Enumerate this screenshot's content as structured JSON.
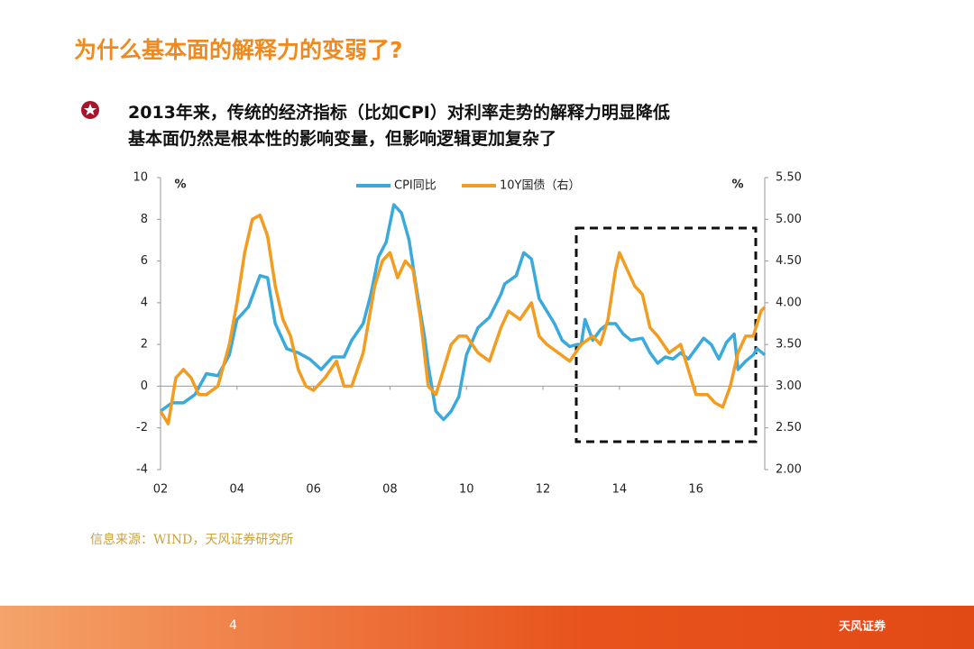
{
  "title": "为什么基本面的解释力的变弱了?",
  "bullets": [
    "2013年来，传统的经济指标（比如CPI）对利率走势的解释力明显降低",
    "基本面仍然是根本性的影响变量，但影响逻辑更加复杂了"
  ],
  "source": "信息来源：WIND，天风证券研究所",
  "page_number": "4",
  "logo": "天风证券",
  "chart_data": {
    "type": "line",
    "y_unit": "%",
    "y2_unit": "%",
    "xlim": [
      2002,
      2017.8
    ],
    "xticks": [
      {
        "value": 2002,
        "label": "02"
      },
      {
        "value": 2004,
        "label": "04"
      },
      {
        "value": 2006,
        "label": "06"
      },
      {
        "value": 2008,
        "label": "08"
      },
      {
        "value": 2010,
        "label": "10"
      },
      {
        "value": 2012,
        "label": "12"
      },
      {
        "value": 2014,
        "label": "14"
      },
      {
        "value": 2016,
        "label": "16"
      }
    ],
    "ylim": [
      -4,
      10
    ],
    "yticks": [
      -4,
      -2,
      0,
      2,
      4,
      6,
      8,
      10
    ],
    "y2lim": [
      2,
      5.5
    ],
    "y2ticks": [
      {
        "value": 2,
        "label": "2.00"
      },
      {
        "value": 2.5,
        "label": "2.50"
      },
      {
        "value": 3,
        "label": "3.00"
      },
      {
        "value": 3.5,
        "label": "3.50"
      },
      {
        "value": 4,
        "label": "4.00"
      },
      {
        "value": 4.5,
        "label": "4.50"
      },
      {
        "value": 5,
        "label": "5.00"
      },
      {
        "value": 5.5,
        "label": "5.50"
      }
    ],
    "series": [
      {
        "name": "CPI同比",
        "color": "#3aa9dc",
        "x": [
          2002.0,
          2002.3,
          2002.6,
          2002.9,
          2003.2,
          2003.5,
          2003.8,
          2004.0,
          2004.3,
          2004.6,
          2004.8,
          2005.0,
          2005.3,
          2005.6,
          2005.9,
          2006.2,
          2006.5,
          2006.8,
          2007.0,
          2007.3,
          2007.5,
          2007.7,
          2007.9,
          2008.1,
          2008.3,
          2008.5,
          2008.7,
          2008.9,
          2009.0,
          2009.2,
          2009.4,
          2009.6,
          2009.8,
          2010.0,
          2010.3,
          2010.6,
          2010.9,
          2011.0,
          2011.3,
          2011.5,
          2011.7,
          2011.9,
          2012.1,
          2012.3,
          2012.5,
          2012.7,
          2012.9,
          2013.0,
          2013.1,
          2013.3,
          2013.5,
          2013.7,
          2013.9,
          2014.1,
          2014.3,
          2014.6,
          2014.8,
          2015.0,
          2015.2,
          2015.4,
          2015.6,
          2015.8,
          2016.0,
          2016.2,
          2016.4,
          2016.6,
          2016.8,
          2016.9,
          2017.0,
          2017.1,
          2017.3,
          2017.5,
          2017.6,
          2017.8
        ],
        "values": [
          -1.2,
          -0.8,
          -0.8,
          -0.4,
          0.6,
          0.5,
          1.5,
          3.2,
          3.8,
          5.3,
          5.2,
          3.0,
          1.8,
          1.6,
          1.3,
          0.8,
          1.4,
          1.4,
          2.2,
          3.0,
          4.4,
          6.2,
          6.9,
          8.7,
          8.3,
          7.0,
          4.6,
          2.4,
          1.0,
          -1.2,
          -1.6,
          -1.2,
          -0.5,
          1.5,
          2.8,
          3.3,
          4.4,
          4.9,
          5.3,
          6.4,
          6.1,
          4.2,
          3.6,
          3.0,
          2.2,
          1.9,
          2.0,
          2.0,
          3.2,
          2.2,
          2.7,
          3.0,
          3.0,
          2.5,
          2.2,
          2.3,
          1.6,
          1.1,
          1.4,
          1.3,
          1.6,
          1.3,
          1.8,
          2.3,
          2.0,
          1.3,
          2.1,
          2.3,
          2.5,
          0.8,
          1.2,
          1.5,
          1.8,
          1.5
        ]
      },
      {
        "name": "10Y国债（右）",
        "color": "#f39c1f",
        "axis": "y2",
        "x": [
          2002.0,
          2002.2,
          2002.4,
          2002.6,
          2002.8,
          2003.0,
          2003.2,
          2003.5,
          2003.8,
          2004.0,
          2004.2,
          2004.4,
          2004.6,
          2004.8,
          2005.0,
          2005.2,
          2005.4,
          2005.6,
          2005.8,
          2006.0,
          2006.3,
          2006.6,
          2006.8,
          2007.0,
          2007.3,
          2007.6,
          2007.8,
          2008.0,
          2008.2,
          2008.4,
          2008.6,
          2008.8,
          2009.0,
          2009.2,
          2009.4,
          2009.6,
          2009.8,
          2010.0,
          2010.3,
          2010.6,
          2010.9,
          2011.1,
          2011.4,
          2011.7,
          2011.9,
          2012.1,
          2012.4,
          2012.7,
          2013.0,
          2013.3,
          2013.5,
          2013.7,
          2013.9,
          2014.0,
          2014.2,
          2014.4,
          2014.6,
          2014.8,
          2015.0,
          2015.3,
          2015.6,
          2015.8,
          2016.0,
          2016.3,
          2016.5,
          2016.7,
          2016.9,
          2017.1,
          2017.3,
          2017.5,
          2017.7,
          2017.8
        ],
        "values": [
          2.7,
          2.55,
          3.1,
          3.2,
          3.1,
          2.9,
          2.9,
          3.0,
          3.5,
          4.0,
          4.6,
          5.0,
          5.05,
          4.8,
          4.2,
          3.8,
          3.6,
          3.2,
          3.0,
          2.95,
          3.1,
          3.3,
          3.0,
          3.0,
          3.4,
          4.2,
          4.5,
          4.6,
          4.3,
          4.5,
          4.4,
          3.8,
          3.0,
          2.9,
          3.2,
          3.5,
          3.6,
          3.6,
          3.4,
          3.3,
          3.7,
          3.9,
          3.8,
          4.0,
          3.6,
          3.5,
          3.4,
          3.3,
          3.5,
          3.6,
          3.5,
          3.8,
          4.4,
          4.6,
          4.4,
          4.2,
          4.1,
          3.7,
          3.6,
          3.4,
          3.5,
          3.2,
          2.9,
          2.9,
          2.8,
          2.75,
          3.0,
          3.4,
          3.6,
          3.6,
          3.9,
          3.95
        ]
      }
    ]
  }
}
